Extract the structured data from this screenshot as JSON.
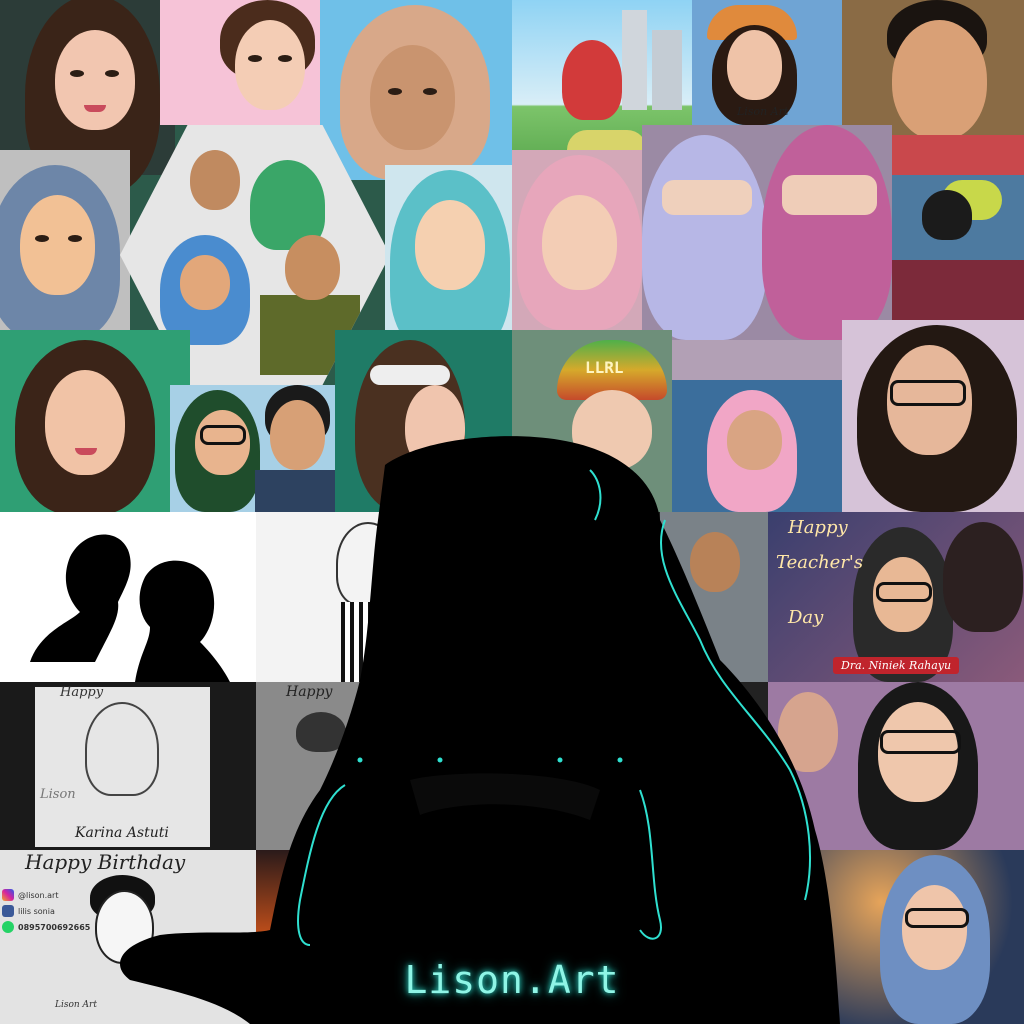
{
  "brand": "Lison.Art",
  "watermark_1": "Lison Art",
  "watermark_2": "lison.art",
  "teachers_card": {
    "line1": "Happy",
    "line2": "Teacher's",
    "line3": "Day",
    "name": "Dra. Niniek Rahayu"
  },
  "sketch_card": {
    "caption_top": "Happy",
    "signature": "Lison",
    "name": "Karina Astuti"
  },
  "sketch_card_2": {
    "caption_top": "Happy"
  },
  "birthday_card": {
    "caption": "Happy Birthday",
    "signature": "Lison Art",
    "instagram": "@lison.art",
    "facebook": "lilis sonia",
    "whatsapp": "0895700692665"
  },
  "beanie_text": "LLRL",
  "colors": {
    "accent": "#8ff5e6",
    "glow": "#2fe0d0",
    "silhouette": "#000000"
  }
}
